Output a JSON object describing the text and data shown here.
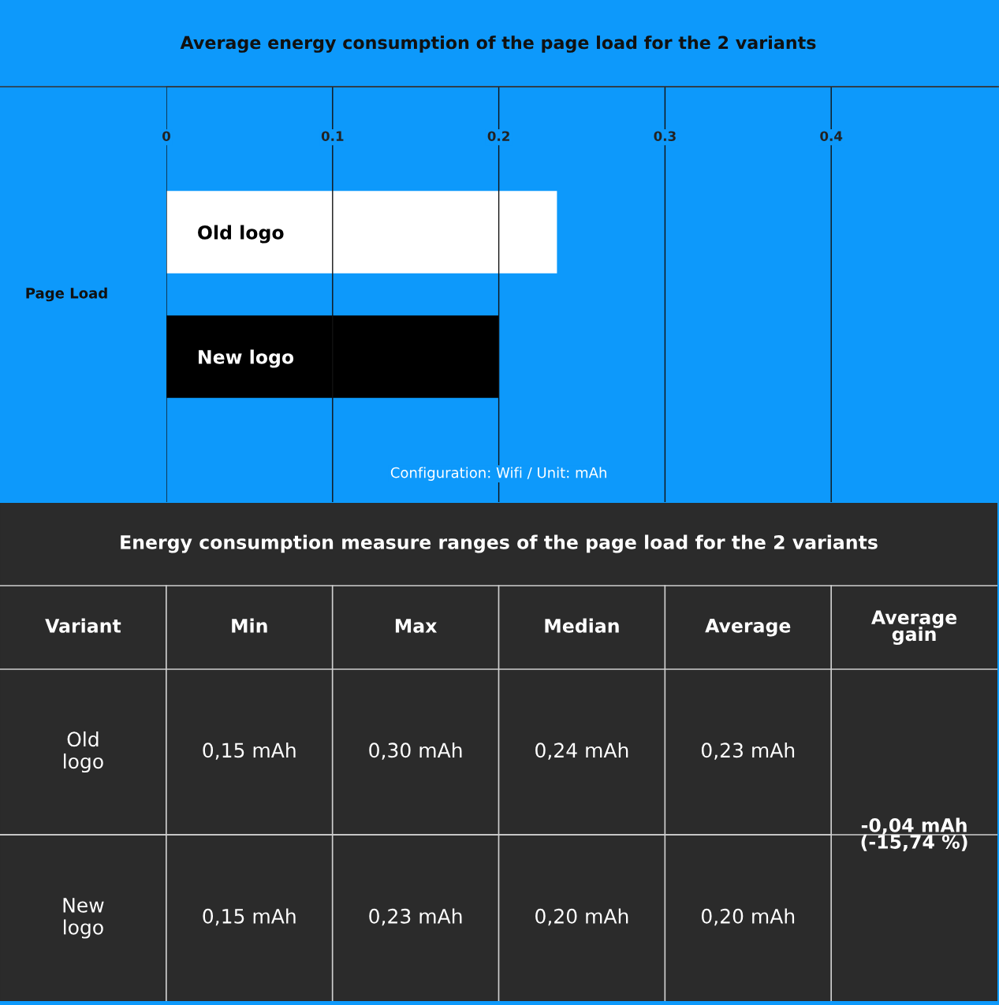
{
  "chart_data": [
    {
      "type": "bar",
      "orientation": "horizontal",
      "title": "Average energy consumption of the page load for the 2 variants",
      "ylabel": "Page Load",
      "categories": [
        "Old logo",
        "New logo"
      ],
      "values": [
        0.235,
        0.2
      ],
      "colors": [
        "#ffffff",
        "#000000"
      ],
      "xlim": [
        0,
        0.5
      ],
      "xticks": [
        0,
        0.1,
        0.2,
        0.3,
        0.4
      ],
      "grid": "x",
      "legend": false,
      "annotations": [
        "Configuration: Wifi / Unit: mAh"
      ]
    },
    {
      "type": "other",
      "title": "Energy consumption measure ranges of the page load for the 2 variants",
      "ylabel": "Variant",
      "categories": [
        "Min",
        "Max",
        "Median",
        "Average",
        "Average\ngain"
      ],
      "y_categories": [
        "Old\nlogo",
        "New\nlogo"
      ],
      "cell_labels": [
        [
          "0,15 mAh",
          "0,30 mAh",
          "0,24 mAh",
          "0,23 mAh",
          "-0,04 mAh\n(-15,74 %)"
        ],
        [
          "0,15 mAh",
          "0,23 mAh",
          "0,20 mAh",
          "0,20 mAh",
          null
        ]
      ]
    }
  ]
}
